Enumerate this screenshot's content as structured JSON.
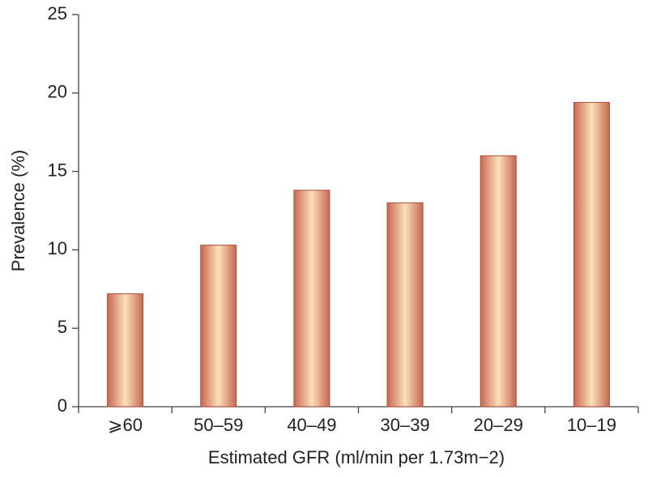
{
  "chart_data": {
    "type": "bar",
    "x_label": "Estimated GFR (ml/min per 1.73m−2)",
    "y_label": "Prevalence (%)",
    "categories": [
      "⩾60",
      "50–59",
      "40–49",
      "30–39",
      "20–29",
      "10–19"
    ],
    "values": [
      7.2,
      10.3,
      13.8,
      13.0,
      16.0,
      19.4
    ],
    "color": "#c8674f",
    "ylim": [
      0,
      25
    ],
    "yticks": [
      0,
      5,
      10,
      15,
      20,
      25
    ],
    "grid": false
  }
}
